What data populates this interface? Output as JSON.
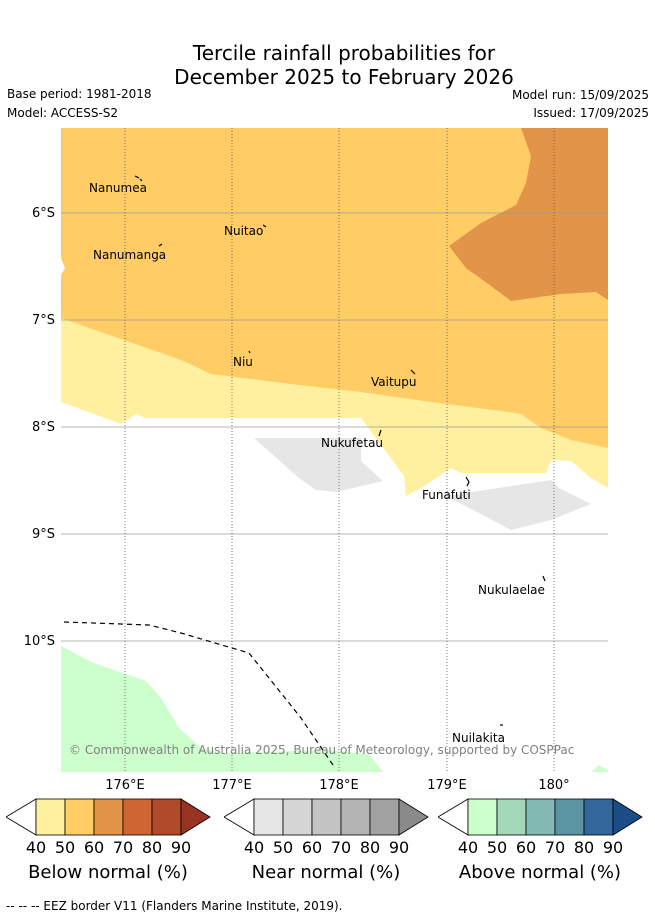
{
  "title_line1": "Tercile rainfall probabilities for",
  "title_line2": "December 2025 to February 2026",
  "base_period": "Base period: 1981-2018",
  "model": "Model: ACCESS-S2",
  "model_run": "Model run: 15/09/2025",
  "issued": "Issued: 17/09/2025",
  "y_ticks": [
    "6°S",
    "7°S",
    "8°S",
    "9°S",
    "10°S"
  ],
  "x_ticks": [
    "176°E",
    "177°E",
    "178°E",
    "179°E",
    "180°"
  ],
  "places": [
    "Nanumea",
    "Nuitao",
    "Nanumanga",
    "Niu",
    "Vaitupu",
    "Nukufetau",
    "Funafuti",
    "Nukulaelae",
    "Nuilakita"
  ],
  "copyright": "© Commonwealth of Australia 2025, Bureau of Meteorology, supported by COSPPac",
  "legends": [
    {
      "title": "Below normal (%)",
      "ticks": [
        "40",
        "50",
        "60",
        "70",
        "80",
        "90"
      ],
      "colors": [
        "#ffffff",
        "#fff0a0",
        "#ffcc66",
        "#e29448",
        "#cf6533",
        "#b04a2a",
        "#993322"
      ]
    },
    {
      "title": "Near normal (%)",
      "ticks": [
        "40",
        "50",
        "60",
        "70",
        "80",
        "90"
      ],
      "colors": [
        "#ffffff",
        "#e6e6e6",
        "#d6d6d6",
        "#c4c4c4",
        "#b4b4b4",
        "#a2a2a2",
        "#8a8a8a"
      ]
    },
    {
      "title": "Above normal (%)",
      "ticks": [
        "40",
        "50",
        "60",
        "70",
        "80",
        "90"
      ],
      "colors": [
        "#ffffff",
        "#ccffcc",
        "#a3d9b8",
        "#82b9b3",
        "#5b95a3",
        "#33669a",
        "#1a4d88"
      ]
    }
  ],
  "footnote": "-- -- -- EEZ border V11 (Flanders Marine Institute, 2019)."
}
